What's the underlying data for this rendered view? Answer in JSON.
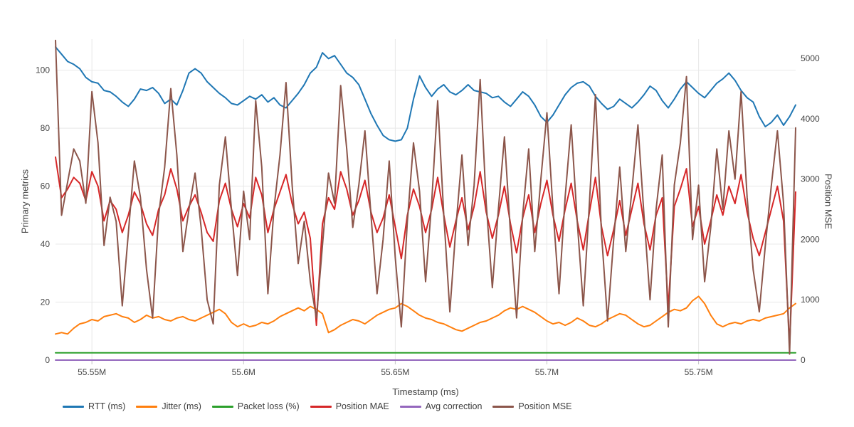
{
  "style": {
    "background": "#ffffff",
    "grid_color": "#e8e8e8",
    "tick_color": "#c4c4c4",
    "text_color": "#444444"
  },
  "chart_data": {
    "type": "line",
    "title": "",
    "xlabel": "Timestamp (ms)",
    "ylabel_left": "Primary metrics",
    "ylabel_right": "Position MSE",
    "legend_position": "bottom-left",
    "grid": true,
    "x_domain": [
      55538000,
      55782000
    ],
    "x_start": 55538000,
    "x_step": 2000,
    "n_points": 123,
    "x_ticks": {
      "values": [
        55550000,
        55600000,
        55650000,
        55700000,
        55750000
      ],
      "labels": [
        "55.55M",
        "55.6M",
        "55.65M",
        "55.7M",
        "55.75M"
      ]
    },
    "y_left": {
      "max": 110.7,
      "ticks": [
        0,
        20,
        40,
        60,
        80,
        100
      ]
    },
    "y_right": {
      "max": 5320,
      "ticks": [
        0,
        1000,
        2000,
        3000,
        4000,
        5000
      ]
    },
    "series": [
      {
        "name": "RTT (ms)",
        "color": "#1f77b4",
        "axis": "left",
        "values": [
          108,
          105.5,
          103,
          102,
          100.5,
          97.5,
          96,
          95.5,
          93,
          92.5,
          91,
          89,
          87.5,
          90,
          93.5,
          93,
          94,
          92,
          88.5,
          90,
          88,
          93,
          99,
          100.5,
          99,
          96,
          94,
          92,
          90.5,
          88.5,
          88,
          89.5,
          91,
          90,
          91.5,
          89,
          90.5,
          88,
          87,
          89.5,
          92,
          95,
          99,
          101,
          106,
          104,
          105,
          102,
          99,
          97.5,
          95,
          90,
          85,
          81,
          77.5,
          76,
          75.5,
          76,
          80,
          90,
          98,
          94,
          91,
          93.5,
          95,
          92.5,
          91.5,
          93,
          95,
          93,
          92.5,
          92,
          90.5,
          91,
          89,
          87.5,
          90,
          92.5,
          91,
          88,
          84,
          82,
          84.5,
          88,
          91.5,
          94,
          95.5,
          96,
          94.5,
          91,
          88.5,
          86.5,
          87.5,
          90,
          88.5,
          87,
          89,
          91.5,
          94.5,
          93,
          89.5,
          87,
          90,
          93.5,
          96,
          94,
          92,
          90.5,
          93,
          95.5,
          97,
          99,
          96.5,
          93,
          90.5,
          89,
          84,
          80.5,
          82,
          84.5,
          81,
          84,
          88
        ]
      },
      {
        "name": "Jitter (ms)",
        "color": "#ff7f0e",
        "axis": "left",
        "values": [
          9,
          9.5,
          9,
          11,
          12.5,
          13,
          14,
          13.5,
          15,
          15.5,
          16,
          15,
          14.5,
          13,
          14,
          15.5,
          14.5,
          15,
          14,
          13.5,
          14.5,
          15,
          14,
          13.5,
          14.5,
          15.5,
          16.5,
          17.5,
          16,
          13,
          11.5,
          12.5,
          11.5,
          12,
          13,
          12.5,
          13.5,
          15,
          16,
          17,
          18,
          17,
          18.5,
          17.5,
          16,
          9.5,
          10.5,
          12,
          13,
          14,
          13.5,
          12.5,
          14,
          15.5,
          16.5,
          17.5,
          18,
          19.5,
          18.5,
          17,
          15.5,
          14.5,
          14,
          13,
          12.5,
          11.5,
          10.5,
          10,
          11,
          12,
          13,
          13.5,
          14.5,
          15.5,
          17,
          18,
          17.5,
          18.5,
          17.5,
          16.5,
          15,
          13.5,
          12.5,
          13,
          12,
          13,
          14.5,
          13.5,
          12,
          11.5,
          12.5,
          14,
          15,
          16,
          15.5,
          14,
          12.5,
          11.5,
          12,
          13.5,
          15,
          16.5,
          17.5,
          17,
          18,
          20.5,
          22,
          19.5,
          15.5,
          12.5,
          11.5,
          12.5,
          13,
          12.5,
          13.5,
          14,
          13.5,
          14.5,
          15,
          15.5,
          16,
          18,
          19.5
        ]
      },
      {
        "name": "Packet loss (%)",
        "color": "#2ca02c",
        "axis": "left",
        "constant": 2.5
      },
      {
        "name": "Position MAE",
        "color": "#d62728",
        "axis": "left",
        "values": [
          70,
          56,
          59,
          63,
          61,
          55,
          65,
          60,
          48,
          55,
          52,
          44,
          50,
          58,
          54,
          47,
          43,
          52,
          57,
          66,
          59,
          48,
          53,
          57,
          51,
          44,
          41,
          55,
          61,
          52,
          46,
          54,
          49,
          63,
          57,
          44,
          52,
          58,
          64,
          54,
          47,
          51,
          42,
          12,
          47,
          56,
          52,
          65,
          59,
          50,
          55,
          62,
          51,
          44,
          49,
          57,
          46,
          35,
          50,
          59,
          53,
          44,
          52,
          63,
          50,
          39,
          48,
          56,
          45,
          53,
          65,
          51,
          42,
          50,
          60,
          47,
          37,
          49,
          57,
          44,
          54,
          62,
          50,
          41,
          52,
          61,
          48,
          38,
          51,
          63,
          46,
          36,
          45,
          55,
          43,
          52,
          61,
          47,
          38,
          50,
          56,
          18,
          53,
          59,
          66,
          46,
          53,
          40,
          48,
          57,
          50,
          60,
          54,
          64,
          51,
          42,
          36,
          44,
          52,
          60,
          48,
          5,
          58
        ]
      },
      {
        "name": "Avg correction",
        "color": "#9467bd",
        "axis": "left",
        "constant": 0
      },
      {
        "name": "Position MSE",
        "color": "#8c564b",
        "axis": "right",
        "values": [
          5300,
          2400,
          2950,
          3500,
          3300,
          2600,
          4450,
          3600,
          1900,
          2700,
          2300,
          900,
          2100,
          3300,
          2700,
          1500,
          700,
          2400,
          3200,
          4500,
          3400,
          1800,
          2500,
          3100,
          2200,
          1000,
          600,
          2900,
          3700,
          2500,
          1400,
          2800,
          2000,
          4300,
          3200,
          1100,
          2500,
          3400,
          4600,
          2900,
          1600,
          2300,
          1300,
          700,
          1900,
          3100,
          2600,
          4550,
          3500,
          2200,
          2900,
          3800,
          2400,
          1100,
          2000,
          3300,
          1700,
          550,
          2300,
          3600,
          2800,
          1300,
          2600,
          4300,
          2400,
          800,
          2200,
          3400,
          1900,
          2900,
          4650,
          2600,
          1200,
          2500,
          3700,
          2100,
          700,
          2400,
          3500,
          1800,
          3000,
          4100,
          2500,
          1100,
          2700,
          3900,
          2300,
          900,
          2600,
          4400,
          2100,
          650,
          2000,
          3200,
          1800,
          2800,
          3900,
          2400,
          1000,
          2500,
          3400,
          550,
          2900,
          3600,
          4700,
          2000,
          2900,
          1300,
          2200,
          3500,
          2500,
          3800,
          3000,
          4450,
          2700,
          1500,
          800,
          1900,
          2900,
          3800,
          2600,
          100,
          3850
        ]
      }
    ]
  }
}
